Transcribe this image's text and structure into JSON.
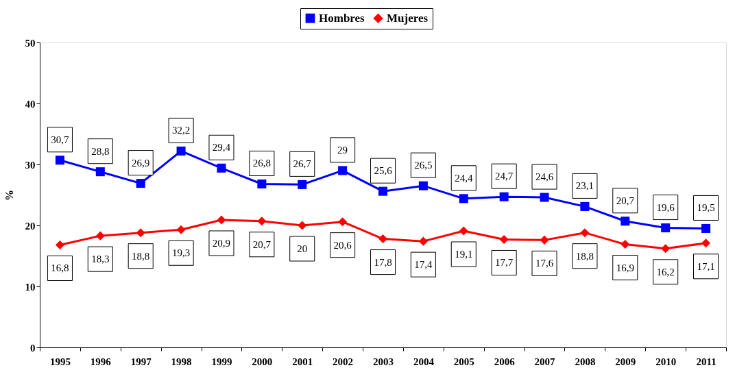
{
  "chart_data": {
    "type": "line",
    "ylabel": "%",
    "categories": [
      "1995",
      "1996",
      "1997",
      "1998",
      "1999",
      "2000",
      "2001",
      "2002",
      "2003",
      "2004",
      "2005",
      "2006",
      "2007",
      "2008",
      "2009",
      "2010",
      "2011"
    ],
    "series": [
      {
        "name": "Hombres",
        "color": "#0000ff",
        "marker": "square",
        "values": [
          30.7,
          28.8,
          26.9,
          32.2,
          29.4,
          26.8,
          26.7,
          29,
          25.6,
          26.5,
          24.4,
          24.7,
          24.6,
          23.1,
          20.7,
          19.6,
          19.5
        ],
        "value_labels": [
          "30,7",
          "28,8",
          "26,9",
          "32,2",
          "29,4",
          "26,8",
          "26,7",
          "29",
          "25,6",
          "26,5",
          "24,4",
          "24,7",
          "24,6",
          "23,1",
          "20,7",
          "19,6",
          "19,5"
        ]
      },
      {
        "name": "Mujeres",
        "color": "#ff0000",
        "marker": "diamond",
        "values": [
          16.8,
          18.3,
          18.8,
          19.3,
          20.9,
          20.7,
          20,
          20.6,
          17.8,
          17.4,
          19.1,
          17.7,
          17.6,
          18.8,
          16.9,
          16.2,
          17.1
        ],
        "value_labels": [
          "16,8",
          "18,3",
          "18,8",
          "19,3",
          "20,9",
          "20,7",
          "20",
          "20,6",
          "17,8",
          "17,4",
          "19,1",
          "17,7",
          "17,6",
          "18,8",
          "16,9",
          "16,2",
          "17,1"
        ]
      }
    ],
    "ylim": [
      0,
      50
    ],
    "yticks": [
      0,
      10,
      20,
      30,
      40,
      50
    ],
    "grid": false,
    "legend": "top",
    "line_style": "solid"
  }
}
